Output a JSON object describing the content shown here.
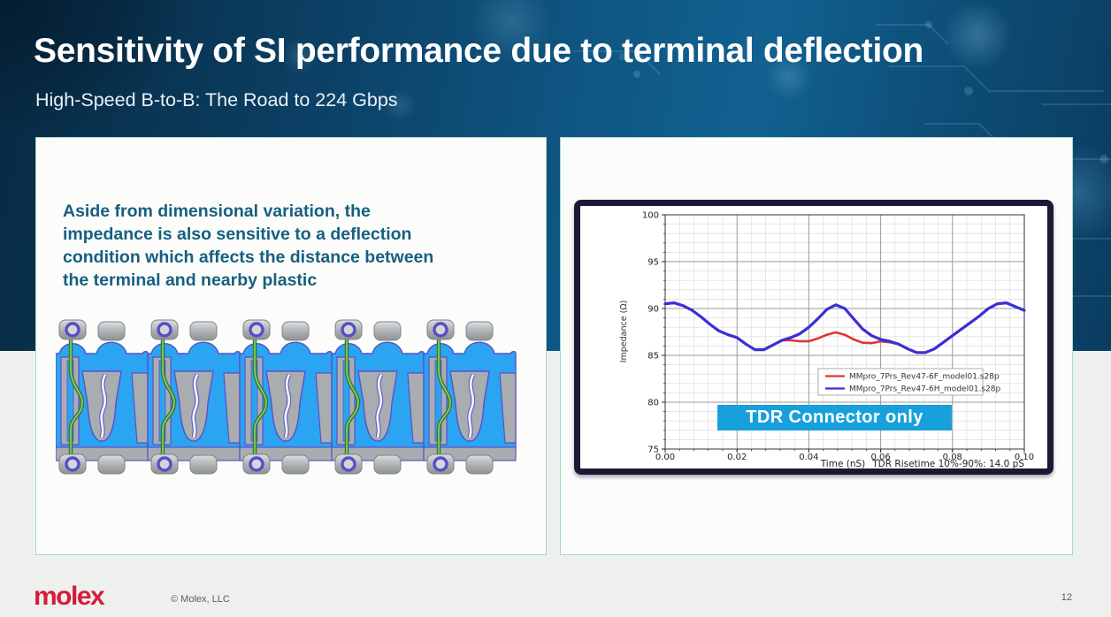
{
  "slide": {
    "title": "Sensitivity of SI performance due to terminal deflection",
    "subtitle": "High-Speed B-to-B: The Road to 224 Gbps",
    "page_number": "12",
    "footer": {
      "logo_text": "molex",
      "copyright": "© Molex, LLC"
    }
  },
  "left_panel": {
    "body_text": "Aside from dimensional variation, the impedance is also sensitive to a deflection condition which affects the distance between the terminal and nearby plastic",
    "body_text_lines": [
      "Aside from dimensional variation, the",
      "impedance is also sensitive to a deflection",
      "condition which affects the distance between",
      "the terminal and nearby plastic"
    ],
    "illustration": "connector-cross-section"
  },
  "right_panel": {
    "callout_label": "TDR Connector only"
  },
  "chart_data": {
    "type": "line",
    "title": "",
    "xlabel": "Time (nS)",
    "ylabel": "Impedance (Ω)",
    "annotation": "TDR Risetime 10%-90%: 14.0 pS",
    "xlim": [
      0.0,
      0.1
    ],
    "ylim": [
      75,
      100
    ],
    "x_ticks": [
      0.0,
      0.02,
      0.04,
      0.06,
      0.08,
      0.1
    ],
    "y_ticks": [
      75,
      80,
      85,
      90,
      95,
      100
    ],
    "grid": true,
    "legend_position": "inside center-right",
    "x": [
      0.0,
      0.0025,
      0.005,
      0.0075,
      0.01,
      0.0125,
      0.015,
      0.0175,
      0.02,
      0.0225,
      0.025,
      0.0275,
      0.03,
      0.0325,
      0.035,
      0.0375,
      0.04,
      0.0425,
      0.045,
      0.0475,
      0.05,
      0.0525,
      0.055,
      0.0575,
      0.06,
      0.0625,
      0.065,
      0.0675,
      0.07,
      0.0725,
      0.075,
      0.0775,
      0.08,
      0.0825,
      0.085,
      0.0875,
      0.09,
      0.0925,
      0.095,
      0.0975,
      0.1
    ],
    "series": [
      {
        "name": "MMpro_7Prs_Rev47-6F_model01.s28p",
        "color": "#e03434",
        "width": 2.6,
        "values": [
          90.5,
          90.6,
          90.3,
          89.8,
          89.1,
          88.3,
          87.6,
          87.2,
          86.9,
          86.2,
          85.6,
          85.6,
          86.1,
          86.6,
          86.6,
          86.5,
          86.5,
          86.8,
          87.2,
          87.45,
          87.2,
          86.7,
          86.35,
          86.3,
          86.5,
          86.4,
          86.2,
          85.7,
          85.3,
          85.3,
          85.7,
          86.4,
          87.1,
          87.8,
          88.5,
          89.2,
          90.0,
          90.5,
          90.6,
          90.2,
          89.8
        ]
      },
      {
        "name": "MMpro_7Prs_Rev47-6H_model01.s28p",
        "color": "#3a2fd4",
        "width": 3.2,
        "values": [
          90.5,
          90.6,
          90.3,
          89.8,
          89.1,
          88.3,
          87.6,
          87.2,
          86.9,
          86.2,
          85.6,
          85.6,
          86.1,
          86.6,
          86.9,
          87.3,
          88.0,
          88.9,
          89.9,
          90.4,
          90.0,
          88.9,
          87.8,
          87.1,
          86.7,
          86.5,
          86.2,
          85.7,
          85.3,
          85.3,
          85.7,
          86.4,
          87.1,
          87.8,
          88.5,
          89.2,
          90.0,
          90.5,
          90.6,
          90.2,
          89.8
        ]
      }
    ]
  },
  "colors": {
    "header_bg": "#0f5582",
    "body_text_teal": "#155f80",
    "card_border": "#a9d8cc",
    "callout_bg": "#18a0dc",
    "chart_frame": "#1a1a35",
    "logo_red": "#d61c3c",
    "curve_red": "#e03434",
    "curve_blue": "#3a2fd4",
    "plastic_blue": "#2ba4f2",
    "housing_gray": "#a9adb0",
    "terminal_green": "#2f7d32"
  }
}
